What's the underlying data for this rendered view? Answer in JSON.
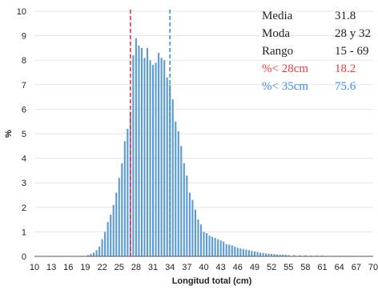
{
  "chart_data": {
    "type": "bar",
    "xlabel": "Longitud total (cm)",
    "ylabel": "%",
    "ylim": [
      0,
      10
    ],
    "yticks": [
      "0",
      "1",
      "2",
      "3",
      "4",
      "5",
      "6",
      "7",
      "8",
      "9",
      "10"
    ],
    "xtick_labels": [
      "10",
      "13",
      "16",
      "19",
      "22",
      "25",
      "28",
      "31",
      "34",
      "37",
      "40",
      "43",
      "46",
      "49",
      "52",
      "55",
      "58",
      "61",
      "64",
      "67",
      "70"
    ],
    "x_start": 10,
    "x_end": 70,
    "bar_width_cm": 0.5,
    "bar_color": "#5b9bd5",
    "bars": [
      {
        "x": 19.5,
        "y": 0.05
      },
      {
        "x": 20,
        "y": 0.1
      },
      {
        "x": 20.5,
        "y": 0.15
      },
      {
        "x": 21,
        "y": 0.25
      },
      {
        "x": 21.5,
        "y": 0.4
      },
      {
        "x": 22,
        "y": 0.7
      },
      {
        "x": 22.5,
        "y": 1.0
      },
      {
        "x": 23,
        "y": 1.4
      },
      {
        "x": 23.5,
        "y": 1.7
      },
      {
        "x": 24,
        "y": 2.1
      },
      {
        "x": 24.5,
        "y": 2.6
      },
      {
        "x": 25,
        "y": 3.2
      },
      {
        "x": 25.5,
        "y": 3.8
      },
      {
        "x": 26,
        "y": 4.7
      },
      {
        "x": 26.5,
        "y": 5.2
      },
      {
        "x": 27,
        "y": 5.9
      },
      {
        "x": 27.5,
        "y": 8.2
      },
      {
        "x": 28,
        "y": 8.9
      },
      {
        "x": 28.5,
        "y": 8.6
      },
      {
        "x": 29,
        "y": 8.5
      },
      {
        "x": 29.5,
        "y": 8.1
      },
      {
        "x": 30,
        "y": 8.5
      },
      {
        "x": 30.5,
        "y": 8.0
      },
      {
        "x": 31,
        "y": 7.8
      },
      {
        "x": 31.5,
        "y": 7.9
      },
      {
        "x": 32,
        "y": 8.3
      },
      {
        "x": 32.5,
        "y": 8.1
      },
      {
        "x": 33,
        "y": 8.0
      },
      {
        "x": 33.5,
        "y": 7.3
      },
      {
        "x": 34,
        "y": 7.0
      },
      {
        "x": 34.5,
        "y": 6.4
      },
      {
        "x": 35,
        "y": 5.5
      },
      {
        "x": 35.5,
        "y": 5.1
      },
      {
        "x": 36,
        "y": 4.5
      },
      {
        "x": 36.5,
        "y": 3.8
      },
      {
        "x": 37,
        "y": 3.3
      },
      {
        "x": 37.5,
        "y": 2.6
      },
      {
        "x": 38,
        "y": 2.3
      },
      {
        "x": 38.5,
        "y": 1.9
      },
      {
        "x": 39,
        "y": 1.5
      },
      {
        "x": 39.5,
        "y": 1.3
      },
      {
        "x": 40,
        "y": 1.0
      },
      {
        "x": 40.5,
        "y": 0.95
      },
      {
        "x": 41,
        "y": 0.85
      },
      {
        "x": 41.5,
        "y": 0.8
      },
      {
        "x": 42,
        "y": 0.75
      },
      {
        "x": 42.5,
        "y": 0.7
      },
      {
        "x": 43,
        "y": 0.65
      },
      {
        "x": 43.5,
        "y": 0.6
      },
      {
        "x": 44,
        "y": 0.5
      },
      {
        "x": 44.5,
        "y": 0.48
      },
      {
        "x": 45,
        "y": 0.45
      },
      {
        "x": 45.5,
        "y": 0.4
      },
      {
        "x": 46,
        "y": 0.35
      },
      {
        "x": 46.5,
        "y": 0.32
      },
      {
        "x": 47,
        "y": 0.3
      },
      {
        "x": 47.5,
        "y": 0.28
      },
      {
        "x": 48,
        "y": 0.25
      },
      {
        "x": 48.5,
        "y": 0.22
      },
      {
        "x": 49,
        "y": 0.2
      },
      {
        "x": 49.5,
        "y": 0.18
      },
      {
        "x": 50,
        "y": 0.15
      },
      {
        "x": 50.5,
        "y": 0.14
      },
      {
        "x": 51,
        "y": 0.12
      },
      {
        "x": 51.5,
        "y": 0.11
      },
      {
        "x": 52,
        "y": 0.1
      },
      {
        "x": 52.5,
        "y": 0.09
      },
      {
        "x": 53,
        "y": 0.08
      },
      {
        "x": 53.5,
        "y": 0.07
      },
      {
        "x": 54,
        "y": 0.07
      },
      {
        "x": 54.5,
        "y": 0.06
      },
      {
        "x": 55,
        "y": 0.05
      },
      {
        "x": 56,
        "y": 0.05
      },
      {
        "x": 57,
        "y": 0.04
      },
      {
        "x": 58,
        "y": 0.04
      },
      {
        "x": 59,
        "y": 0.03
      },
      {
        "x": 60,
        "y": 0.03
      },
      {
        "x": 61,
        "y": 0.03
      },
      {
        "x": 62,
        "y": 0.02
      },
      {
        "x": 63,
        "y": 0.02
      },
      {
        "x": 64,
        "y": 0.02
      },
      {
        "x": 65,
        "y": 0.02
      },
      {
        "x": 66,
        "y": 0.02
      },
      {
        "x": 67,
        "y": 0.01
      },
      {
        "x": 68,
        "y": 0.01
      },
      {
        "x": 69,
        "y": 0.01
      }
    ],
    "reference_lines": [
      {
        "x": 27,
        "color": "#e83a3a",
        "style": "dashed"
      },
      {
        "x": 34,
        "color": "#3a8ee8",
        "style": "dashed"
      }
    ],
    "annotations": [
      {
        "label": "Media",
        "value": "31.8",
        "color": "#222222"
      },
      {
        "label": "Moda",
        "value": "28 y 32",
        "color": "#222222"
      },
      {
        "label": "Rango",
        "value": "15 - 69",
        "color": "#222222"
      },
      {
        "label": "%< 28cm",
        "value": "18.2",
        "color": "#e83a3a"
      },
      {
        "label": "%< 35cm",
        "value": "75.6",
        "color": "#3a8ee8"
      }
    ]
  }
}
